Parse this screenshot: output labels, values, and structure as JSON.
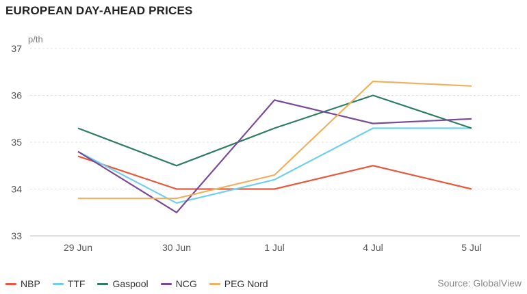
{
  "chart_data": {
    "type": "line",
    "title": "EUROPEAN DAY-AHEAD PRICES",
    "ylabel": "p/th",
    "xlabel": "",
    "categories": [
      "29 Jun",
      "30 Jun",
      "1 Jul",
      "4 Jul",
      "5 Jul"
    ],
    "ylim": [
      33,
      37
    ],
    "yticks": [
      33,
      34,
      35,
      36,
      37
    ],
    "grid": true,
    "legend_position": "bottom-left",
    "series": [
      {
        "name": "NBP",
        "color": "#e8583c",
        "values": [
          34.7,
          34.0,
          34.0,
          34.5,
          34.0
        ]
      },
      {
        "name": "TTF",
        "color": "#6fd0ee",
        "values": [
          34.8,
          33.7,
          34.2,
          35.3,
          35.3
        ]
      },
      {
        "name": "Gaspool",
        "color": "#2e7d5e",
        "values": [
          35.3,
          34.5,
          35.3,
          36.0,
          35.3
        ]
      },
      {
        "name": "NCG",
        "color": "#7a4a9a",
        "values": [
          34.8,
          33.5,
          35.9,
          35.4,
          35.5
        ]
      },
      {
        "name": "PEG Nord",
        "color": "#f0b060",
        "values": [
          33.8,
          33.8,
          34.3,
          36.3,
          36.2
        ]
      }
    ],
    "source": "Source: GlobalView"
  }
}
